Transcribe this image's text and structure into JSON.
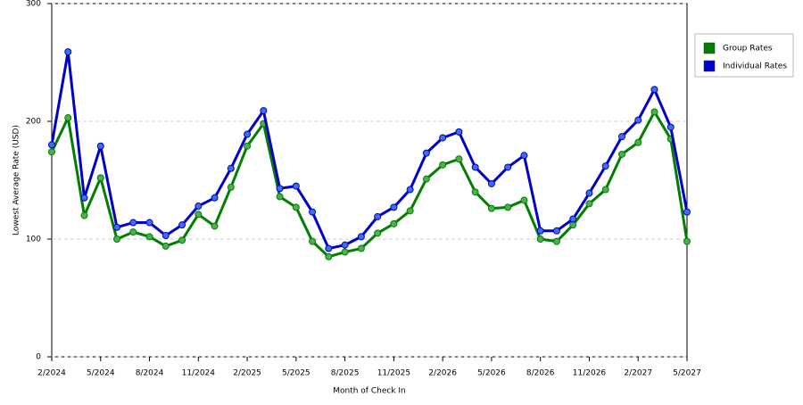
{
  "chart_data": {
    "type": "line",
    "x_label": "Month of Check In",
    "y_label": "Lowest Average Rate (USD)",
    "categories": [
      "2/2024",
      null,
      null,
      "5/2024",
      null,
      null,
      "8/2024",
      null,
      null,
      "11/2024",
      null,
      null,
      "2/2025",
      null,
      null,
      "5/2025",
      null,
      null,
      "8/2025",
      null,
      null,
      "11/2025",
      null,
      null,
      "2/2026",
      null,
      null,
      "5/2026",
      null,
      null,
      "8/2026",
      null,
      null,
      "11/2026",
      null,
      null,
      "2/2027",
      null,
      null,
      "5/2027"
    ],
    "series": [
      {
        "name": "Group Rates",
        "color": "#007f00",
        "marker_color": "#4caf50",
        "values": [
          174,
          203,
          120,
          152,
          100,
          106,
          102,
          94,
          99,
          121,
          111,
          144,
          179,
          198,
          136,
          127,
          98,
          85,
          89,
          92,
          105,
          113,
          124,
          151,
          163,
          168,
          140,
          126,
          127,
          133,
          100,
          98,
          112,
          130,
          142,
          172,
          182,
          208,
          185,
          98
        ]
      },
      {
        "name": "Individual Rates",
        "color": "#0000cc",
        "marker_color": "#3f6fe0",
        "values": [
          180,
          259,
          135,
          179,
          110,
          114,
          114,
          103,
          112,
          128,
          135,
          160,
          189,
          209,
          143,
          145,
          123,
          92,
          95,
          102,
          119,
          127,
          142,
          173,
          186,
          191,
          161,
          147,
          161,
          171,
          107,
          107,
          117,
          139,
          162,
          187,
          201,
          227,
          195,
          123
        ]
      }
    ],
    "ylim": [
      0,
      300
    ],
    "yticks": [
      0,
      100,
      200,
      300
    ],
    "grid": true,
    "legend": "right"
  }
}
